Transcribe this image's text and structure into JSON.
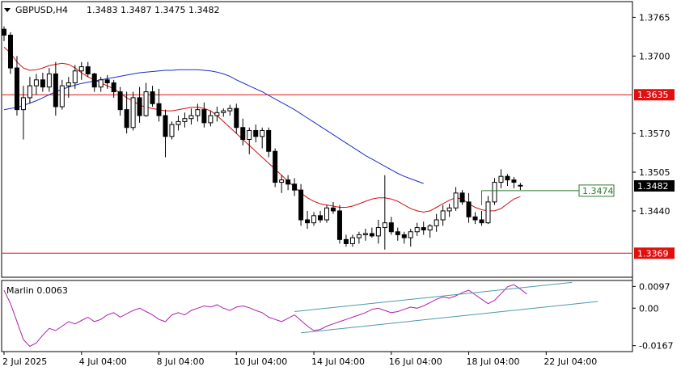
{
  "header": {
    "symbol": "GBPUSD,H4",
    "ohlc": "1.3483 1.3487 1.3475 1.3482"
  },
  "indicator": {
    "label": "Marlin 0.0063"
  },
  "colors": {
    "background": "#ffffff",
    "candle_up_body": "#ffffff",
    "candle_down_body": "#000000",
    "ma_fast": "#d01010",
    "ma_slow": "#1a2ecc",
    "level_line": "#e01010",
    "marker_line": "#2a7a2a",
    "oscillator": "#b020b0",
    "channel": "#4a9aaa",
    "axis": "#000000"
  },
  "chart_data": [
    {
      "type": "candlestick",
      "symbol": "GBPUSD",
      "timeframe": "H4",
      "ylim": [
        1.333,
        1.379
      ],
      "y_ticks": [
        "1.3765",
        "1.3700",
        "1.3570",
        "1.3505",
        "1.3440"
      ],
      "x_ticks": [
        "2 Jul 2025",
        "4 Jul 04:00",
        "8 Jul 04:00",
        "10 Jul 04:00",
        "14 Jul 04:00",
        "16 Jul 04:00",
        "18 Jul 04:00",
        "22 Jul 04:00"
      ],
      "bars_per_tick": 12,
      "x_tick_bar_index": [
        0,
        12,
        24,
        36,
        48,
        60,
        72,
        84
      ],
      "levels": [
        {
          "value": 1.3635,
          "label": "1.3635"
        },
        {
          "value": 1.3369,
          "label": "1.3369"
        }
      ],
      "current_price": {
        "value": 1.3482,
        "label": "1.3482"
      },
      "marker": {
        "value": 1.3474,
        "label": "1.3474",
        "from_bar": 74,
        "to_bar": 88
      },
      "candles": [
        [
          1.3745,
          1.375,
          1.3725,
          1.3735
        ],
        [
          1.3735,
          1.374,
          1.367,
          1.368
        ],
        [
          1.368,
          1.37,
          1.36,
          1.361
        ],
        [
          1.361,
          1.365,
          1.356,
          1.363
        ],
        [
          1.363,
          1.3665,
          1.362,
          1.365
        ],
        [
          1.365,
          1.367,
          1.3635,
          1.366
        ],
        [
          1.366,
          1.3672,
          1.364,
          1.3648
        ],
        [
          1.3648,
          1.368,
          1.364,
          1.367
        ],
        [
          1.367,
          1.369,
          1.36,
          1.3615
        ],
        [
          1.3615,
          1.366,
          1.361,
          1.365
        ],
        [
          1.365,
          1.3665,
          1.363,
          1.3655
        ],
        [
          1.3655,
          1.3685,
          1.3645,
          1.3675
        ],
        [
          1.3675,
          1.369,
          1.366,
          1.3682
        ],
        [
          1.3682,
          1.369,
          1.3665,
          1.367
        ],
        [
          1.367,
          1.3672,
          1.364,
          1.3648
        ],
        [
          1.3648,
          1.3665,
          1.364,
          1.366
        ],
        [
          1.366,
          1.3668,
          1.3645,
          1.3655
        ],
        [
          1.3655,
          1.366,
          1.363,
          1.364
        ],
        [
          1.364,
          1.3648,
          1.36,
          1.361
        ],
        [
          1.361,
          1.364,
          1.357,
          1.358
        ],
        [
          1.358,
          1.364,
          1.3575,
          1.363
        ],
        [
          1.363,
          1.3648,
          1.3588,
          1.36
        ],
        [
          1.36,
          1.3655,
          1.3598,
          1.364
        ],
        [
          1.364,
          1.365,
          1.3615,
          1.362
        ],
        [
          1.362,
          1.3645,
          1.359,
          1.36
        ],
        [
          1.36,
          1.361,
          1.353,
          1.3565
        ],
        [
          1.3565,
          1.359,
          1.356,
          1.3585
        ],
        [
          1.3585,
          1.36,
          1.3575,
          1.359
        ],
        [
          1.359,
          1.3605,
          1.358,
          1.3595
        ],
        [
          1.3595,
          1.3612,
          1.3585,
          1.36
        ],
        [
          1.36,
          1.362,
          1.359,
          1.361
        ],
        [
          1.361,
          1.3622,
          1.358,
          1.3588
        ],
        [
          1.3588,
          1.3608,
          1.3582,
          1.36
        ],
        [
          1.36,
          1.3615,
          1.359,
          1.3605
        ],
        [
          1.3605,
          1.3612,
          1.3598,
          1.3608
        ],
        [
          1.3608,
          1.3618,
          1.36,
          1.3612
        ],
        [
          1.3612,
          1.362,
          1.357,
          1.358
        ],
        [
          1.358,
          1.3595,
          1.355,
          1.356
        ],
        [
          1.356,
          1.358,
          1.3535,
          1.3575
        ],
        [
          1.3575,
          1.3585,
          1.3555,
          1.3565
        ],
        [
          1.3565,
          1.358,
          1.3545,
          1.3575
        ],
        [
          1.3575,
          1.358,
          1.353,
          1.354
        ],
        [
          1.354,
          1.3545,
          1.348,
          1.3488
        ],
        [
          1.3488,
          1.35,
          1.347,
          1.3492
        ],
        [
          1.3492,
          1.35,
          1.3475,
          1.3485
        ],
        [
          1.3485,
          1.3495,
          1.3465,
          1.3475
        ],
        [
          1.3475,
          1.3485,
          1.3415,
          1.3425
        ],
        [
          1.3425,
          1.344,
          1.341,
          1.342
        ],
        [
          1.342,
          1.3438,
          1.3415,
          1.3432
        ],
        [
          1.3432,
          1.344,
          1.342,
          1.3425
        ],
        [
          1.3425,
          1.345,
          1.342,
          1.3445
        ],
        [
          1.3445,
          1.3455,
          1.3435,
          1.344
        ],
        [
          1.344,
          1.345,
          1.3385,
          1.3392
        ],
        [
          1.3392,
          1.34,
          1.338,
          1.3385
        ],
        [
          1.3385,
          1.34,
          1.338,
          1.3395
        ],
        [
          1.3395,
          1.3405,
          1.3385,
          1.34
        ],
        [
          1.34,
          1.341,
          1.339,
          1.3402
        ],
        [
          1.3402,
          1.3412,
          1.3395,
          1.3398
        ],
        [
          1.3398,
          1.3425,
          1.3385,
          1.3412
        ],
        [
          1.3412,
          1.35,
          1.3375,
          1.342
        ],
        [
          1.342,
          1.343,
          1.34,
          1.3405
        ],
        [
          1.3405,
          1.3412,
          1.339,
          1.34
        ],
        [
          1.34,
          1.3405,
          1.3385,
          1.3395
        ],
        [
          1.3395,
          1.341,
          1.338,
          1.3405
        ],
        [
          1.3405,
          1.342,
          1.3398,
          1.3412
        ],
        [
          1.3412,
          1.3422,
          1.34,
          1.3408
        ],
        [
          1.3408,
          1.3418,
          1.3395,
          1.3415
        ],
        [
          1.3415,
          1.3435,
          1.3405,
          1.3425
        ],
        [
          1.3425,
          1.345,
          1.3415,
          1.344
        ],
        [
          1.344,
          1.3452,
          1.343,
          1.3445
        ],
        [
          1.3445,
          1.348,
          1.344,
          1.347
        ],
        [
          1.347,
          1.3475,
          1.345,
          1.3455
        ],
        [
          1.3455,
          1.347,
          1.342,
          1.343
        ],
        [
          1.343,
          1.3438,
          1.3418,
          1.3425
        ],
        [
          1.3425,
          1.344,
          1.3415,
          1.342
        ],
        [
          1.342,
          1.3465,
          1.3418,
          1.3455
        ],
        [
          1.3455,
          1.3495,
          1.345,
          1.3488
        ],
        [
          1.3488,
          1.351,
          1.3478,
          1.3498
        ],
        [
          1.3498,
          1.3502,
          1.3482,
          1.3492
        ],
        [
          1.3492,
          1.3497,
          1.3478,
          1.3488
        ],
        [
          1.3483,
          1.3487,
          1.3475,
          1.3482
        ]
      ],
      "ma_fast": [
        1.3715,
        1.3705,
        1.369,
        1.368,
        1.3676,
        1.3677,
        1.368,
        1.3684,
        1.3686,
        1.3688,
        1.3686,
        1.368,
        1.3672,
        1.3665,
        1.366,
        1.3655,
        1.365,
        1.3645,
        1.3638,
        1.363,
        1.3624,
        1.3618,
        1.3614,
        1.3612,
        1.361,
        1.3608,
        1.3608,
        1.361,
        1.3612,
        1.3614,
        1.3614,
        1.3612,
        1.3608,
        1.36,
        1.359,
        1.358,
        1.357,
        1.356,
        1.355,
        1.354,
        1.353,
        1.352,
        1.351,
        1.35,
        1.349,
        1.348,
        1.347,
        1.3462,
        1.3456,
        1.3452,
        1.345,
        1.3448,
        1.3446,
        1.3446,
        1.3448,
        1.3452,
        1.3456,
        1.346,
        1.3462,
        1.3462,
        1.346,
        1.3456,
        1.345,
        1.3444,
        1.344,
        1.3438,
        1.344,
        1.3446,
        1.3452,
        1.3458,
        1.3462,
        1.346,
        1.3452,
        1.3446,
        1.3442,
        1.344,
        1.344,
        1.3444,
        1.3452,
        1.346,
        1.3464
      ],
      "ma_slow": [
        1.361,
        1.3612,
        1.3614,
        1.3617,
        1.3621,
        1.3625,
        1.363,
        1.3635,
        1.364,
        1.3644,
        1.3648,
        1.3651,
        1.3654,
        1.3656,
        1.3658,
        1.366,
        1.3662,
        1.3664,
        1.3666,
        1.3668,
        1.367,
        1.3672,
        1.3673,
        1.3674,
        1.3675,
        1.3676,
        1.3676,
        1.3677,
        1.3677,
        1.3677,
        1.3677,
        1.3676,
        1.3675,
        1.3673,
        1.367,
        1.3666,
        1.366,
        1.3655,
        1.365,
        1.3645,
        1.364,
        1.3634,
        1.3628,
        1.3622,
        1.3616,
        1.361,
        1.3603,
        1.3596,
        1.3589,
        1.3582,
        1.3575,
        1.3568,
        1.3561,
        1.3554,
        1.3547,
        1.354,
        1.3533,
        1.3527,
        1.3521,
        1.3515,
        1.3509,
        1.3503,
        1.3498,
        1.3494,
        1.349,
        1.3486
      ],
      "oscillator": {
        "name": "Marlin",
        "value": 0.0063,
        "ylim": [
          -0.019,
          0.012
        ],
        "y_ticks": [
          "0.0097",
          "0.00",
          "-0.0167"
        ],
        "values": [
          0.008,
          0.002,
          -0.006,
          -0.014,
          -0.017,
          -0.0155,
          -0.012,
          -0.009,
          -0.01,
          -0.008,
          -0.006,
          -0.007,
          -0.0055,
          -0.004,
          -0.006,
          -0.005,
          -0.003,
          -0.002,
          -0.004,
          -0.0025,
          -0.001,
          0.0,
          -0.0015,
          -0.003,
          -0.005,
          -0.006,
          -0.003,
          -0.002,
          -0.003,
          -0.001,
          0.0,
          0.001,
          0.0005,
          0.0015,
          0.0,
          -0.001,
          0.0005,
          0.001,
          0.0002,
          -0.001,
          -0.002,
          -0.004,
          -0.005,
          -0.006,
          -0.0045,
          -0.003,
          -0.0055,
          -0.008,
          -0.01,
          -0.0095,
          -0.008,
          -0.007,
          -0.006,
          -0.005,
          -0.004,
          -0.003,
          -0.002,
          -0.0005,
          0.0,
          -0.001,
          -0.002,
          -0.0015,
          -0.0005,
          0.0005,
          0.0,
          0.001,
          0.0025,
          0.004,
          0.005,
          0.0045,
          0.0055,
          0.007,
          0.008,
          0.006,
          0.004,
          0.002,
          0.0035,
          0.0065,
          0.0095,
          0.0105,
          0.0085,
          0.0063
        ]
      },
      "channel": {
        "upper": {
          "from": [
            45,
            -0.0015
          ],
          "to": [
            88,
            0.0115
          ]
        },
        "lower": {
          "from": [
            46,
            -0.011
          ],
          "to": [
            92,
            0.003
          ]
        }
      }
    }
  ]
}
